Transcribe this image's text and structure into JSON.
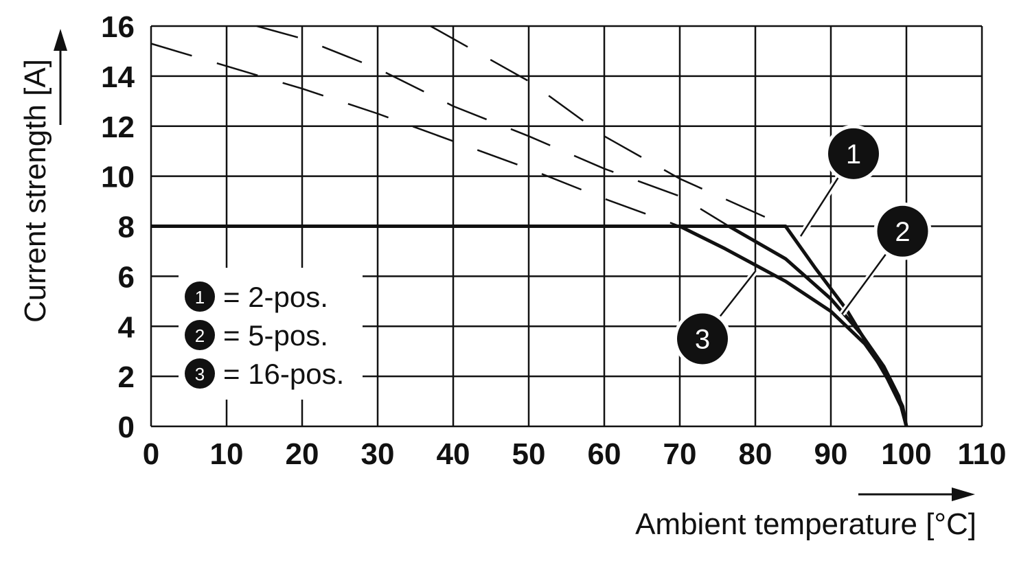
{
  "chart_data": {
    "type": "line",
    "xlabel": "Ambient temperature [°C]",
    "ylabel": "Current strength [A]",
    "xlim": [
      0,
      110
    ],
    "ylim": [
      0,
      16
    ],
    "x_ticks": [
      "0",
      "10",
      "20",
      "30",
      "40",
      "50",
      "60",
      "70",
      "80",
      "90",
      "100",
      "110"
    ],
    "y_ticks": [
      "0",
      "2",
      "4",
      "6",
      "8",
      "10",
      "12",
      "14",
      "16"
    ],
    "grid": true,
    "legend_position": "lower-left",
    "legend": [
      {
        "marker": "1",
        "text": "= 2-pos."
      },
      {
        "marker": "2",
        "text": "= 5-pos."
      },
      {
        "marker": "3",
        "text": "= 16-pos."
      }
    ],
    "series": [
      {
        "marker": "1",
        "style": "solid",
        "points": [
          [
            0,
            8
          ],
          [
            84,
            8
          ],
          [
            88,
            6.3
          ],
          [
            92,
            4.7
          ],
          [
            95,
            3.2
          ],
          [
            97.5,
            1.9
          ],
          [
            99.3,
            0.8
          ],
          [
            100,
            0
          ]
        ]
      },
      {
        "marker": "2",
        "style": "solid",
        "points": [
          [
            76.5,
            8
          ],
          [
            84,
            6.7
          ],
          [
            90,
            5.1
          ],
          [
            94,
            3.7
          ],
          [
            97,
            2.4
          ],
          [
            99,
            1.2
          ],
          [
            100,
            0
          ]
        ]
      },
      {
        "marker": "3",
        "style": "solid",
        "points": [
          [
            70,
            8
          ],
          [
            76,
            7.1
          ],
          [
            84,
            5.8
          ],
          [
            90,
            4.6
          ],
          [
            94.5,
            3.3
          ],
          [
            97.8,
            1.9
          ],
          [
            99.5,
            0.8
          ],
          [
            100,
            0
          ]
        ]
      },
      {
        "marker": "1",
        "style": "dashed",
        "points": [
          [
            37,
            16
          ],
          [
            50,
            13.8
          ],
          [
            60,
            11.6
          ],
          [
            70,
            9.9
          ],
          [
            84,
            8
          ]
        ]
      },
      {
        "marker": "2",
        "style": "dashed",
        "points": [
          [
            14,
            16
          ],
          [
            20,
            15.5
          ],
          [
            30,
            14.3
          ],
          [
            40,
            12.8
          ],
          [
            50,
            11.6
          ],
          [
            60,
            10.3
          ],
          [
            70,
            9.2
          ],
          [
            76.5,
            8
          ]
        ]
      },
      {
        "marker": "3",
        "style": "dashed",
        "points": [
          [
            0,
            15.3
          ],
          [
            10,
            14.4
          ],
          [
            20,
            13.5
          ],
          [
            30,
            12.5
          ],
          [
            40,
            11.4
          ],
          [
            50,
            10.3
          ],
          [
            60,
            9.1
          ],
          [
            70,
            8
          ]
        ]
      }
    ],
    "callouts": [
      {
        "marker": "1",
        "at": [
          86,
          7.6
        ],
        "badge": [
          93,
          10.9
        ]
      },
      {
        "marker": "2",
        "at": [
          91.5,
          4.5
        ],
        "badge": [
          99.5,
          7.8
        ]
      },
      {
        "marker": "3",
        "at": [
          80,
          6.2
        ],
        "badge": [
          73,
          3.5
        ]
      }
    ]
  }
}
